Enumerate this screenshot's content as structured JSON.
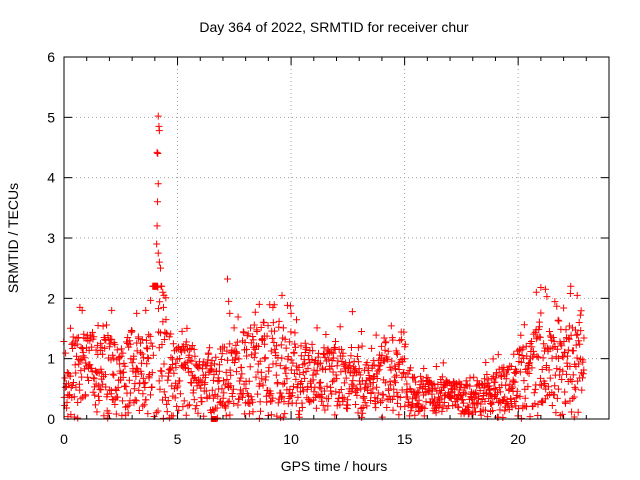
{
  "chart_data": {
    "type": "scatter",
    "title": "Day 364 of 2022, SRMTID for receiver chur",
    "xlabel": "GPS time / hours",
    "ylabel": "SRMTID / TECUs",
    "xlim": [
      0,
      24
    ],
    "ylim": [
      0,
      6
    ],
    "xticks": [
      0,
      5,
      10,
      15,
      20
    ],
    "yticks": [
      0,
      1,
      2,
      3,
      4,
      5,
      6
    ],
    "grid": true,
    "marker": "+",
    "color": "#ff0000",
    "baseline": [
      [
        0.0,
        0.45
      ],
      [
        0.5,
        0.85
      ],
      [
        1.0,
        0.8
      ],
      [
        1.5,
        0.75
      ],
      [
        2.0,
        0.8
      ],
      [
        2.5,
        0.7
      ],
      [
        3.0,
        0.85
      ],
      [
        3.5,
        0.75
      ],
      [
        3.8,
        0.85
      ],
      [
        3.95,
        1.5
      ],
      [
        4.05,
        2.3
      ],
      [
        4.2,
        1.7
      ],
      [
        4.4,
        1.0
      ],
      [
        5.0,
        0.7
      ],
      [
        5.5,
        0.75
      ],
      [
        6.0,
        0.6
      ],
      [
        6.5,
        0.55
      ],
      [
        7.0,
        0.7
      ],
      [
        7.5,
        0.75
      ],
      [
        8.0,
        0.85
      ],
      [
        8.5,
        0.95
      ],
      [
        9.0,
        0.9
      ],
      [
        9.5,
        0.85
      ],
      [
        10.0,
        0.9
      ],
      [
        10.5,
        0.75
      ],
      [
        11.0,
        0.7
      ],
      [
        11.5,
        0.7
      ],
      [
        12.0,
        0.75
      ],
      [
        12.5,
        0.55
      ],
      [
        13.0,
        0.6
      ],
      [
        13.5,
        0.55
      ],
      [
        14.0,
        0.7
      ],
      [
        14.5,
        0.8
      ],
      [
        15.0,
        0.75
      ],
      [
        15.3,
        0.45
      ],
      [
        16.0,
        0.4
      ],
      [
        16.5,
        0.45
      ],
      [
        17.0,
        0.35
      ],
      [
        17.5,
        0.35
      ],
      [
        18.0,
        0.3
      ],
      [
        18.5,
        0.4
      ],
      [
        19.0,
        0.45
      ],
      [
        19.5,
        0.55
      ],
      [
        20.0,
        0.65
      ],
      [
        20.5,
        0.75
      ],
      [
        21.0,
        0.95
      ],
      [
        21.5,
        0.85
      ],
      [
        22.0,
        1.05
      ],
      [
        22.5,
        0.95
      ],
      [
        22.9,
        0.9
      ]
    ],
    "highlights": [
      [
        4.15,
        5.02
      ],
      [
        4.18,
        4.85
      ],
      [
        4.2,
        4.78
      ],
      [
        4.1,
        4.42
      ],
      [
        4.13,
        4.4
      ],
      [
        4.15,
        3.9
      ],
      [
        4.12,
        3.6
      ],
      [
        4.1,
        3.2
      ],
      [
        4.08,
        2.9
      ],
      [
        4.15,
        2.75
      ],
      [
        4.2,
        2.6
      ],
      [
        4.25,
        2.5
      ],
      [
        4.3,
        2.2
      ],
      [
        4.35,
        2.1
      ],
      [
        4.4,
        2.05
      ],
      [
        7.2,
        2.32
      ],
      [
        7.25,
        1.95
      ],
      [
        7.3,
        1.75
      ],
      [
        9.6,
        2.05
      ],
      [
        9.2,
        1.85
      ],
      [
        10.0,
        1.75
      ],
      [
        12.7,
        1.78
      ],
      [
        21.0,
        2.18
      ],
      [
        21.2,
        2.15
      ],
      [
        20.8,
        2.1
      ],
      [
        22.3,
        2.08
      ],
      [
        22.6,
        2.05
      ],
      [
        0.7,
        1.85
      ],
      [
        0.8,
        1.8
      ],
      [
        2.1,
        1.8
      ],
      [
        3.2,
        1.75
      ],
      [
        3.6,
        1.8
      ],
      [
        1.5,
        1.55
      ],
      [
        8.6,
        1.9
      ],
      [
        13.1,
        1.45
      ]
    ]
  }
}
